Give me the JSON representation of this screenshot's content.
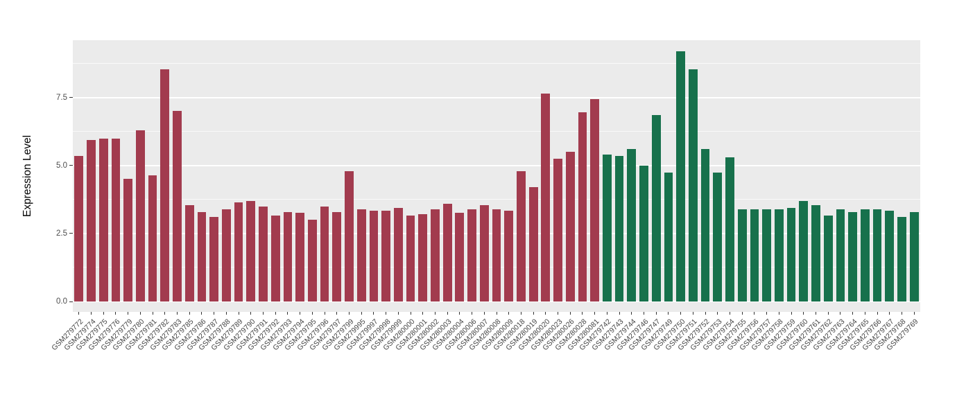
{
  "chart_data": {
    "type": "bar",
    "title": "",
    "xlabel": "",
    "ylabel": "Expression Level",
    "yticks": [
      0.0,
      2.5,
      5.0,
      7.5
    ],
    "ytick_labels": [
      "0.0",
      "2.5",
      "5.0",
      "7.5"
    ],
    "minor_gridlines": [
      1.25,
      3.75,
      6.25,
      8.75
    ],
    "ylim": [
      0,
      9.2
    ],
    "grid": true,
    "legend": "none",
    "panel_background": "#EBEBEB",
    "categories": [
      "GSM279772",
      "GSM279774",
      "GSM279775",
      "GSM279776",
      "GSM279779",
      "GSM279780",
      "GSM279781",
      "GSM279782",
      "GSM279783",
      "GSM279785",
      "GSM279786",
      "GSM279787",
      "GSM279788",
      "GSM279789",
      "GSM279790",
      "GSM279791",
      "GSM279792",
      "GSM279793",
      "GSM279794",
      "GSM279795",
      "GSM279796",
      "GSM279797",
      "GSM279799",
      "GSM279995",
      "GSM279997",
      "GSM279998",
      "GSM279999",
      "GSM280000",
      "GSM280001",
      "GSM280002",
      "GSM280003",
      "GSM280004",
      "GSM280006",
      "GSM280007",
      "GSM280008",
      "GSM280009",
      "GSM280018",
      "GSM280019",
      "GSM280020",
      "GSM280023",
      "GSM280026",
      "GSM280028",
      "GSM280081",
      "GSM279742",
      "GSM279743",
      "GSM279744",
      "GSM279746",
      "GSM279747",
      "GSM279749",
      "GSM279750",
      "GSM279751",
      "GSM279752",
      "GSM279753",
      "GSM279754",
      "GSM279755",
      "GSM279756",
      "GSM279757",
      "GSM279758",
      "GSM279759",
      "GSM279760",
      "GSM279761",
      "GSM279762",
      "GSM279763",
      "GSM279764",
      "GSM279765",
      "GSM279766",
      "GSM279767",
      "GSM279768",
      "GSM279769"
    ],
    "values": [
      5.35,
      5.95,
      6.0,
      6.0,
      4.5,
      6.3,
      4.65,
      8.55,
      7.0,
      3.55,
      3.3,
      3.1,
      3.4,
      3.65,
      3.7,
      3.5,
      3.15,
      3.3,
      3.25,
      3.0,
      3.5,
      3.3,
      4.8,
      3.4,
      3.35,
      3.35,
      3.45,
      3.15,
      3.2,
      3.4,
      3.6,
      3.25,
      3.4,
      3.55,
      3.4,
      3.35,
      4.8,
      4.2,
      7.65,
      5.25,
      5.5,
      6.95,
      7.45,
      5.4,
      5.35,
      5.6,
      5.0,
      6.85,
      4.75,
      9.2,
      8.55,
      5.6,
      4.75,
      5.3,
      3.4,
      3.4,
      3.4,
      3.4,
      3.45,
      3.7,
      3.55,
      3.15,
      3.4,
      3.3,
      3.4,
      3.4,
      3.35,
      3.1,
      3.3
    ],
    "groups": [
      {
        "color": "#a23b4e",
        "count": 43
      },
      {
        "color": "#17714c",
        "count": 26
      }
    ]
  }
}
